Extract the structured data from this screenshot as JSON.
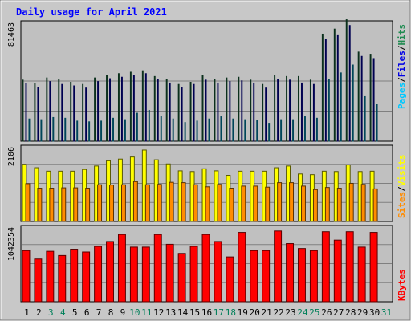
{
  "chart_data": {
    "type": "bar",
    "title": "Daily usage for April 2021",
    "categories": [
      "1",
      "2",
      "3",
      "4",
      "5",
      "6",
      "7",
      "8",
      "9",
      "10",
      "11",
      "12",
      "13",
      "14",
      "15",
      "16",
      "17",
      "18",
      "19",
      "20",
      "21",
      "22",
      "23",
      "24",
      "25",
      "26",
      "27",
      "28",
      "29",
      "30",
      "31"
    ],
    "weekend_days": [
      "3",
      "4",
      "10",
      "11",
      "17",
      "18",
      "24",
      "25",
      "31"
    ],
    "panels": [
      {
        "max_label": "81463",
        "ymax": 81463,
        "grid": true,
        "series": [
          {
            "name": "Hits",
            "color": "#1e8a50",
            "values": [
              42500,
              40000,
              44000,
              43000,
              41000,
              39500,
              44000,
              46000,
              47000,
              48000,
              49000,
              45000,
              43000,
              39500,
              41000,
              45500,
              43000,
              44000,
              44500,
              42500,
              39500,
              45500,
              45000,
              45000,
              42500,
              74500,
              78000,
              84500,
              62000,
              60500,
              0
            ]
          },
          {
            "name": "Files",
            "color": "#0000e6",
            "values": [
              40000,
              37500,
              41500,
              39500,
              38500,
              37000,
              41500,
              43500,
              44500,
              45500,
              47000,
              43000,
              40500,
              37500,
              39500,
              42500,
              40500,
              41500,
              42000,
              40500,
              37000,
              43000,
              42500,
              40500,
              39500,
              71000,
              74000,
              80500,
              59000,
              57500,
              0
            ]
          },
          {
            "name": "Pages",
            "color": "#00c8ff",
            "values": [
              15500,
              15000,
              16500,
              16000,
              14000,
              13500,
              14000,
              16000,
              15000,
              19500,
              21500,
              17500,
              15500,
              13000,
              14000,
              15500,
              17000,
              15500,
              15000,
              14500,
              12500,
              15000,
              15000,
              17000,
              16000,
              43000,
              47500,
              53000,
              31000,
              25500,
              0
            ]
          }
        ]
      },
      {
        "max_label": "2106",
        "ymax": 2106,
        "grid": true,
        "series": [
          {
            "name": "Visits",
            "color": "#ffff00",
            "values": [
              1650,
              1550,
              1450,
              1450,
              1450,
              1500,
              1600,
              1750,
              1800,
              1860,
              2060,
              1780,
              1660,
              1460,
              1440,
              1520,
              1460,
              1330,
              1450,
              1450,
              1450,
              1550,
              1600,
              1370,
              1350,
              1450,
              1440,
              1630,
              1440,
              1450,
              0
            ]
          },
          {
            "name": "Sites",
            "color": "#ff8c00",
            "values": [
              1090,
              960,
              960,
              970,
              970,
              960,
              1060,
              1050,
              1060,
              1150,
              1060,
              1070,
              1130,
              1120,
              1060,
              1000,
              1070,
              960,
              1020,
              1020,
              990,
              1120,
              1120,
              1020,
              920,
              980,
              960,
              1100,
              1070,
              940,
              0
            ]
          }
        ]
      },
      {
        "max_label": "1042354",
        "ymax": 1042354,
        "grid": true,
        "series": [
          {
            "name": "KBytes",
            "color": "#ff0000",
            "values": [
              730000,
              610000,
              720000,
              660000,
              750000,
              710000,
              790000,
              860000,
              960000,
              780000,
              780000,
              960000,
              820000,
              690000,
              790000,
              960000,
              860000,
              640000,
              990000,
              730000,
              730000,
              1010000,
              830000,
              760000,
              730000,
              1000000,
              880000,
              1000000,
              780000,
              990000,
              0
            ]
          }
        ]
      }
    ],
    "axis_labels": {
      "panel1": [
        {
          "text": "Pages",
          "color": "#00c8ff"
        },
        {
          "text": "/",
          "color": "#000000"
        },
        {
          "text": "Files",
          "color": "#0000e6"
        },
        {
          "text": "/",
          "color": "#000000"
        },
        {
          "text": "Hits",
          "color": "#1e8a50"
        }
      ],
      "panel2": [
        {
          "text": "Sites",
          "color": "#ff8c00"
        },
        {
          "text": "/",
          "color": "#000000"
        },
        {
          "text": "Visits",
          "color": "#ffff00"
        }
      ],
      "panel3": [
        {
          "text": "KBytes",
          "color": "#ff0000"
        }
      ]
    },
    "colors": {
      "panel_bg": "#c0c0c0",
      "frame_bg": "#c8c8c8",
      "title": "#0000ff",
      "weekday_label": "#000000",
      "weekend_label": "#00805a",
      "grid": "#808080"
    }
  }
}
